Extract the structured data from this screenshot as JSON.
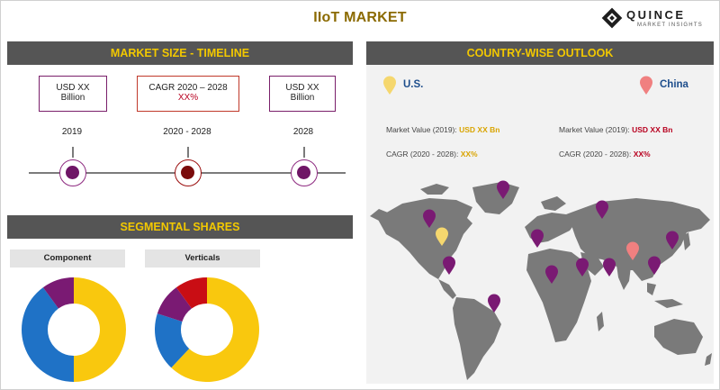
{
  "title": "IIoT MARKET",
  "logo": {
    "word": "QUINCE",
    "sub": "MARKET INSIGHTS"
  },
  "sections": {
    "market_size": "MARKET SIZE - TIMELINE",
    "segmental": "SEGMENTAL SHARES",
    "country": "COUNTRY-WISE OUTLOOK"
  },
  "timeline": {
    "boxes": [
      {
        "line1": "USD XX",
        "line2": "Billion"
      },
      {
        "line1": "CAGR 2020 – 2028",
        "line2": "XX%"
      },
      {
        "line1": "USD XX",
        "line2": "Billion"
      }
    ],
    "years": [
      "2019",
      "2020 - 2028",
      "2028"
    ]
  },
  "segments": {
    "component": {
      "label": "Component",
      "slices": [
        {
          "value": 50,
          "color": "#f9c80e"
        },
        {
          "value": 40,
          "color": "#1f72c6"
        },
        {
          "value": 10,
          "color": "#7a1a73"
        }
      ]
    },
    "verticals": {
      "label": "Verticals",
      "slices": [
        {
          "value": 62,
          "color": "#f9c80e"
        },
        {
          "value": 18,
          "color": "#1f72c6"
        },
        {
          "value": 10,
          "color": "#7a1a73"
        },
        {
          "value": 10,
          "color": "#c90d14"
        }
      ]
    }
  },
  "countries": {
    "us": {
      "name": "U.S.",
      "pin_color": "#f5d76e",
      "market_label": "Market Value (2019):",
      "market_value": "USD XX Bn",
      "cagr_label": "CAGR (2020 - 2028):",
      "cagr_value": "XX%"
    },
    "china": {
      "name": "China",
      "pin_color": "#f08080",
      "market_label": "Market Value (2019):",
      "market_value": "USD XX Bn",
      "cagr_label": "CAGR (2020 - 2028):",
      "cagr_value": "XX%"
    }
  },
  "colors": {
    "section_bar": "#555555",
    "section_text": "#f2c800",
    "accent_purple": "#7a1a73",
    "map_land": "#7a7a7a"
  }
}
